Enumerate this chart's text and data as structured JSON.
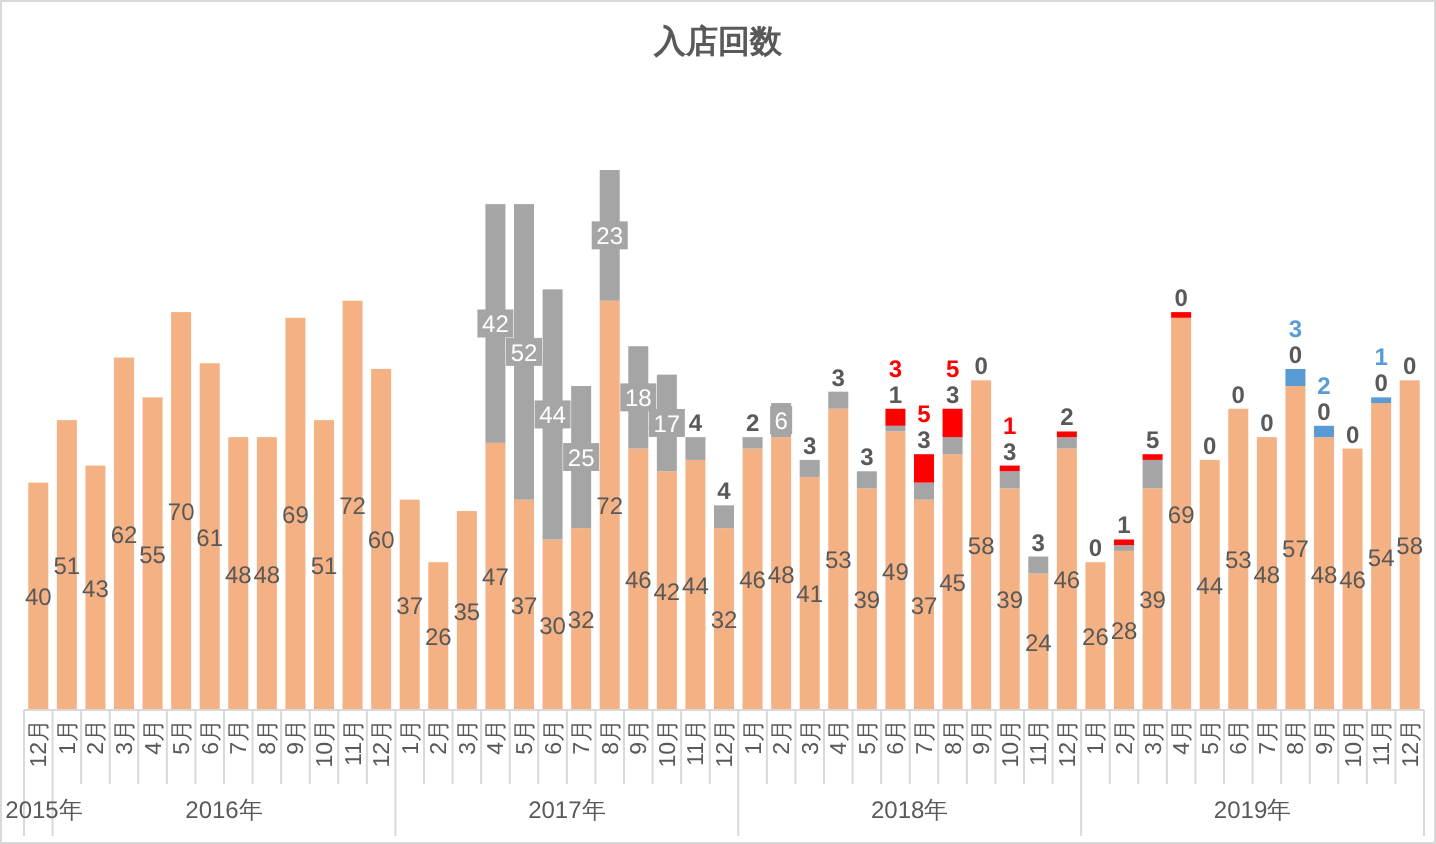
{
  "chart_data": {
    "type": "bar",
    "title": "入店回数",
    "stacked": true,
    "categories": [
      "12月",
      "1月",
      "2月",
      "3月",
      "4月",
      "5月",
      "6月",
      "7月",
      "8月",
      "9月",
      "10月",
      "11月",
      "12月",
      "1月",
      "2月",
      "3月",
      "4月",
      "5月",
      "6月",
      "7月",
      "8月",
      "9月",
      "10月",
      "11月",
      "12月",
      "1月",
      "2月",
      "3月",
      "4月",
      "5月",
      "6月",
      "7月",
      "8月",
      "9月",
      "10月",
      "11月",
      "12月",
      "1月",
      "2月",
      "3月",
      "4月",
      "5月",
      "6月",
      "7月",
      "8月",
      "9月",
      "10月",
      "11月",
      "12月"
    ],
    "annotations": [
      "2015年",
      "2016年",
      "2017年",
      "2018年",
      "2019年"
    ],
    "series": [
      {
        "color": "#f4b183",
        "values": [
          40,
          51,
          43,
          62,
          55,
          70,
          61,
          48,
          48,
          69,
          51,
          72,
          60,
          37,
          26,
          35,
          47,
          37,
          30,
          32,
          72,
          46,
          42,
          44,
          32,
          46,
          48,
          41,
          53,
          39,
          49,
          37,
          45,
          58,
          39,
          24,
          46,
          26,
          28,
          39,
          69,
          44,
          53,
          48,
          57,
          48,
          46,
          54,
          58
        ],
        "value_labels": [
          "40",
          "51",
          "43",
          "62",
          "55",
          "70",
          "61",
          "48",
          "48",
          "69",
          "51",
          "72",
          "60",
          "37",
          "26",
          "35",
          "47",
          "37",
          "30",
          "32",
          "72",
          "46",
          "42",
          "44",
          "32",
          "46",
          "48",
          "41",
          "53",
          "39",
          "49",
          "37",
          "45",
          "58",
          "39",
          "24",
          "46",
          "26",
          "28",
          "39",
          "69",
          "44",
          "53",
          "48",
          "57",
          "48",
          "46",
          "54",
          "58"
        ]
      },
      {
        "color": "#a5a5a5",
        "values": [
          null,
          null,
          null,
          null,
          null,
          null,
          null,
          null,
          null,
          null,
          null,
          null,
          null,
          null,
          null,
          null,
          42,
          52,
          44,
          25,
          23,
          18,
          17,
          4,
          4,
          2,
          6,
          3,
          3,
          3,
          1,
          3,
          3,
          0,
          3,
          3,
          2,
          0,
          1,
          5,
          0,
          0,
          0,
          0,
          0,
          0,
          0,
          0,
          0
        ],
        "value_labels": [
          null,
          null,
          null,
          null,
          null,
          null,
          null,
          null,
          null,
          null,
          null,
          null,
          null,
          null,
          null,
          null,
          "42",
          "52",
          "44",
          "25",
          "23",
          "18",
          "17",
          "4",
          "4",
          "2",
          "6",
          "3",
          "3",
          "3",
          "1",
          "3",
          "3",
          "0",
          "3",
          "3",
          "2",
          "0",
          "1",
          "5",
          "0",
          "0",
          "0",
          "0",
          "0",
          "0",
          "0",
          "0",
          "0"
        ]
      },
      {
        "color": "#ff0000",
        "values": [
          null,
          null,
          null,
          null,
          null,
          null,
          null,
          null,
          null,
          null,
          null,
          null,
          null,
          null,
          null,
          null,
          null,
          null,
          null,
          null,
          null,
          null,
          null,
          null,
          null,
          null,
          null,
          null,
          null,
          null,
          3,
          5,
          5,
          null,
          1,
          null,
          1,
          null,
          1,
          1,
          1,
          null,
          null,
          null,
          null,
          null,
          null,
          null,
          null
        ],
        "value_labels": [
          null,
          null,
          null,
          null,
          null,
          null,
          null,
          null,
          null,
          null,
          null,
          null,
          null,
          null,
          null,
          null,
          null,
          null,
          null,
          null,
          null,
          null,
          null,
          null,
          null,
          null,
          null,
          null,
          null,
          null,
          "3",
          "5",
          "5",
          null,
          "1",
          null,
          null,
          null,
          null,
          null,
          null,
          null,
          null,
          null,
          null,
          null,
          null,
          null,
          null
        ]
      },
      {
        "color": "#5b9bd5",
        "values": [
          null,
          null,
          null,
          null,
          null,
          null,
          null,
          null,
          null,
          null,
          null,
          null,
          null,
          null,
          null,
          null,
          null,
          null,
          null,
          null,
          null,
          null,
          null,
          null,
          null,
          null,
          null,
          null,
          null,
          null,
          null,
          null,
          null,
          null,
          null,
          null,
          null,
          null,
          null,
          null,
          null,
          null,
          null,
          null,
          3,
          2,
          null,
          1,
          null
        ],
        "value_labels": [
          null,
          null,
          null,
          null,
          null,
          null,
          null,
          null,
          null,
          null,
          null,
          null,
          null,
          null,
          null,
          null,
          null,
          null,
          null,
          null,
          null,
          null,
          null,
          null,
          null,
          null,
          null,
          null,
          null,
          null,
          null,
          null,
          null,
          null,
          null,
          null,
          null,
          null,
          null,
          null,
          null,
          null,
          null,
          null,
          "3",
          "2",
          null,
          "1",
          null
        ]
      }
    ]
  }
}
